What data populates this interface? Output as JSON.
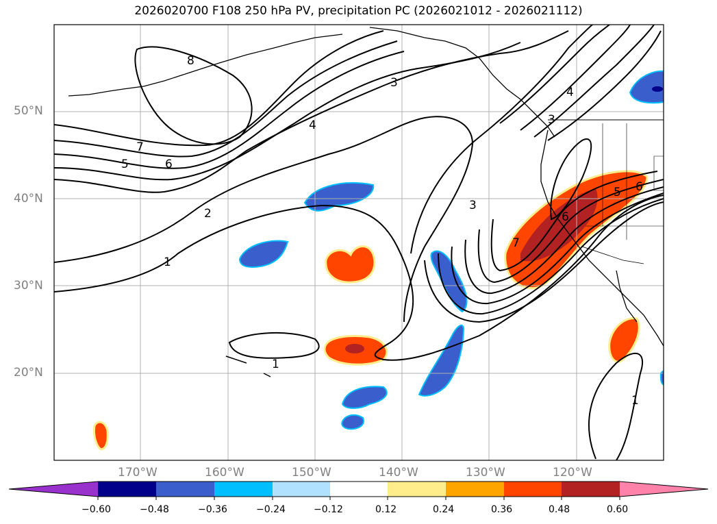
{
  "title": "2026020700 F108 250 hPa PV, precipitation PC (2026021012 - 2026021112)",
  "map": {
    "lon_ticks": [
      "170°W",
      "160°W",
      "150°W",
      "140°W",
      "130°W",
      "120°W"
    ],
    "lat_ticks": [
      "50°N",
      "40°N",
      "30°N",
      "20°N"
    ],
    "gridlines": true,
    "pv_contour_labels": [
      "8",
      "7",
      "6",
      "5",
      "4",
      "3",
      "3",
      "2",
      "1",
      "1",
      "1",
      "3",
      "4",
      "5",
      "6",
      "7",
      "6"
    ]
  },
  "colorbar": {
    "extend": "both",
    "colors": [
      "#9932cc",
      "#00008b",
      "#3a5fcd",
      "#00bfff",
      "#b0e2ff",
      "#ffffff",
      "#ffec8b",
      "#ffa500",
      "#ff4500",
      "#b22222",
      "#ff82ab"
    ],
    "tick_labels": [
      "−0.60",
      "−0.48",
      "−0.36",
      "−0.24",
      "−0.12",
      "0.12",
      "0.24",
      "0.36",
      "0.48",
      "0.60"
    ]
  },
  "precip_pc_colors": {
    "neg_mid": "#3a5fcd",
    "neg_light": "#00bfff",
    "neg_dark": "#00008b",
    "pos_mid": "#ff4500",
    "pos_light": "#ffec8b",
    "pos_orange": "#ffa500",
    "pos_dark": "#b22222"
  }
}
